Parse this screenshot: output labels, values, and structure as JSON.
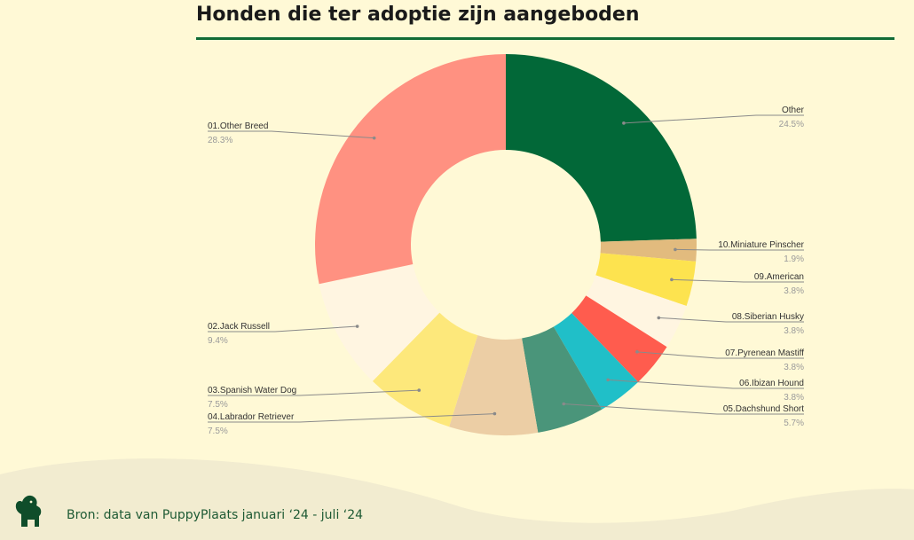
{
  "title": "Honden die ter adoptie zijn aangeboden",
  "footer": {
    "source": "Bron: data van PuppyPlaats januari ‘24 - juli ‘24"
  },
  "chart_data": {
    "type": "pie",
    "donut": true,
    "series": [
      {
        "name": "Other",
        "value": 24.5,
        "label_value": "24.5%",
        "color": "#026838"
      },
      {
        "name": "10.Miniature Pinscher",
        "value": 1.9,
        "label_value": "1.9%",
        "color": "#e2bb7e"
      },
      {
        "name": "09.American",
        "value": 3.8,
        "label_value": "3.8%",
        "color": "#fde34f"
      },
      {
        "name": "08.Siberian Husky",
        "value": 3.8,
        "label_value": "3.8%",
        "color": "#fff5e1"
      },
      {
        "name": "07.Pyrenean Mastiff",
        "value": 3.8,
        "label_value": "3.8%",
        "color": "#ff5c4e"
      },
      {
        "name": "06.Ibizan Hound",
        "value": 3.8,
        "label_value": "3.8%",
        "color": "#20bfc8"
      },
      {
        "name": "05.Dachshund Short",
        "value": 5.7,
        "label_value": "5.7%",
        "color": "#4a957a"
      },
      {
        "name": "04.Labrador Retriever",
        "value": 7.5,
        "label_value": "7.5%",
        "color": "#eccea5"
      },
      {
        "name": "03.Spanish Water Dog",
        "value": 7.5,
        "label_value": "7.5%",
        "color": "#fde87b"
      },
      {
        "name": "02.Jack Russell",
        "value": 9.4,
        "label_value": "9.4%",
        "color": "#fff5e1"
      },
      {
        "name": "01.Other Breed",
        "value": 28.3,
        "label_value": "28.3%",
        "color": "#ff9181"
      }
    ]
  },
  "colors": {
    "background": "#fff9d6",
    "accent": "#116b36",
    "wave": "#f2ecd0"
  },
  "logo_icon": "dog-silhouette-icon"
}
